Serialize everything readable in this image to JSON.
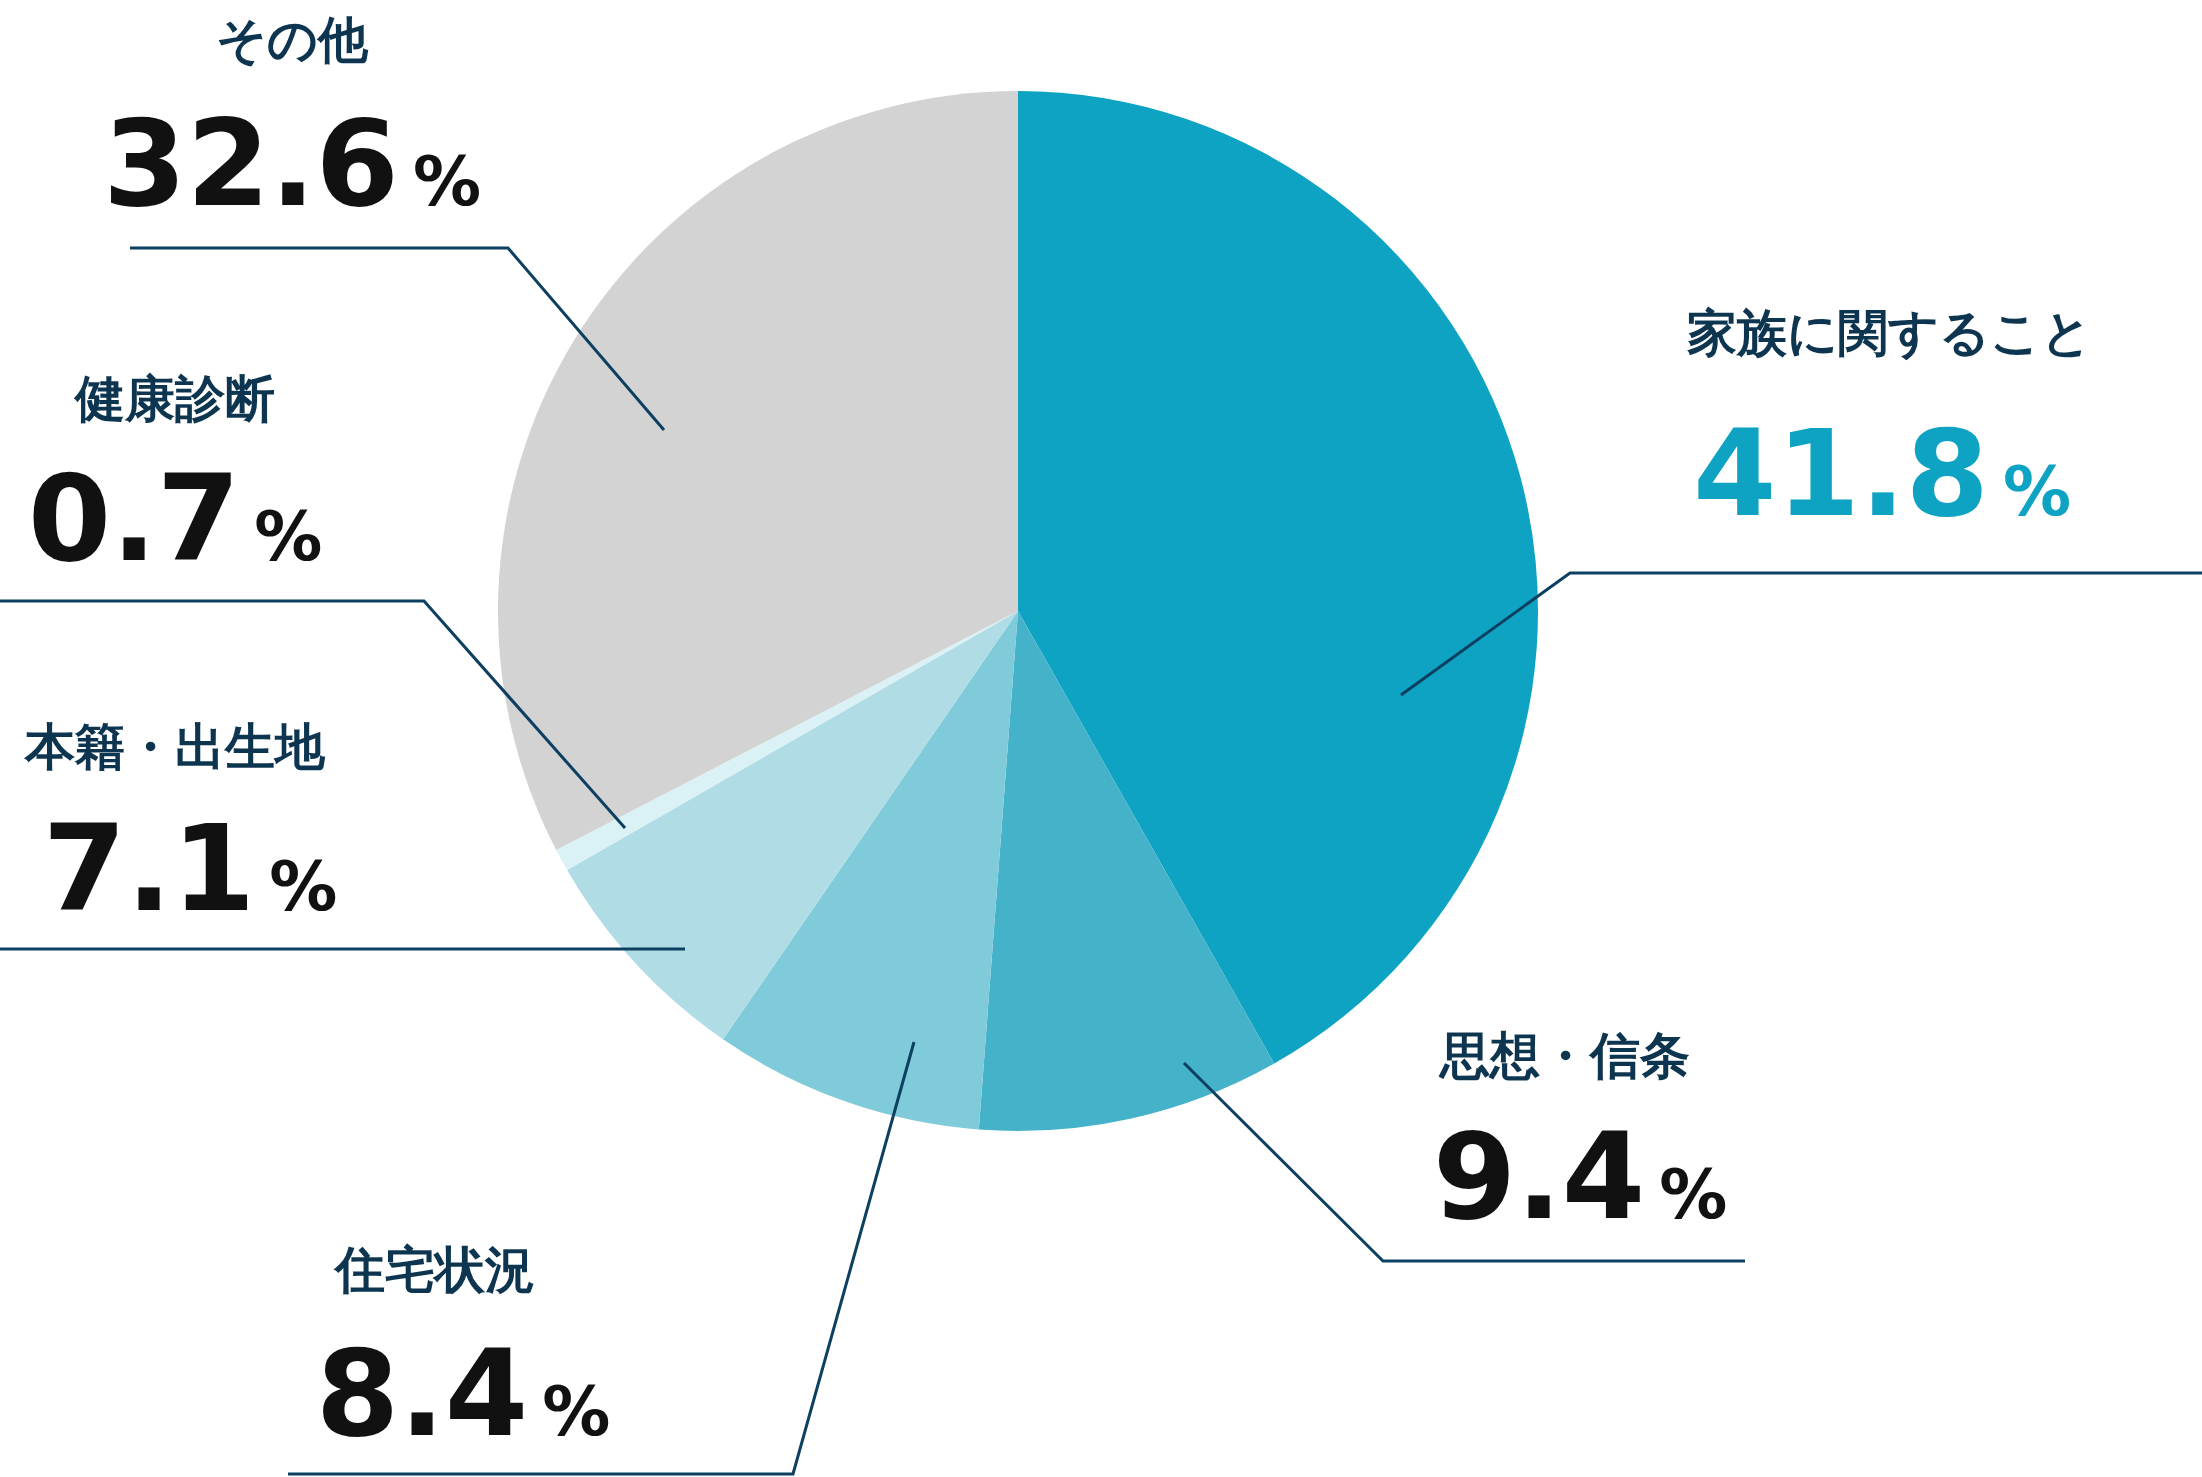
{
  "chart_data": {
    "type": "pie",
    "categories": [
      "家族に関すること",
      "思想・信条",
      "住宅状況",
      "本籍・出生地",
      "健康診断",
      "その他"
    ],
    "values": [
      41.8,
      9.4,
      8.4,
      7.1,
      0.7,
      32.6
    ],
    "value_labels": [
      "41.8%",
      "9.4%",
      "8.4%",
      "7.1%",
      "0.7%",
      "32.6%"
    ],
    "colors": [
      "#0ea3c2",
      "#44b2c9",
      "#80cbd9",
      "#b0dde5",
      "#daf1f5",
      "#d3d3d3"
    ]
  }
}
